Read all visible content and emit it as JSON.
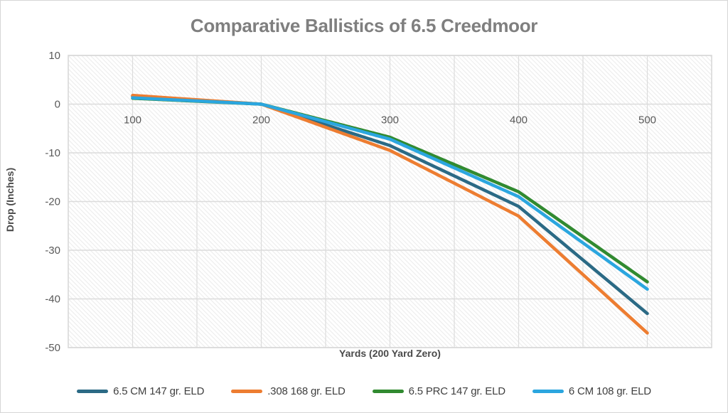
{
  "chart_data": {
    "type": "line",
    "title": "Comparative Ballistics of 6.5 Creedmoor",
    "xlabel": "Yards (200 Yard Zero)",
    "ylabel": "Drop (Inches)",
    "categories": [
      100,
      200,
      300,
      400,
      500
    ],
    "yticks": [
      10,
      0,
      -10,
      -20,
      -30,
      -40,
      -50
    ],
    "ylim": [
      -50,
      10
    ],
    "grid": true,
    "plot_background": "diagonal-hatch",
    "legend_position": "bottom",
    "series": [
      {
        "name": "6.5 CM 147 gr. ELD",
        "color": "#2B6A85",
        "values": [
          1.6,
          0,
          -8.5,
          -21,
          -43
        ]
      },
      {
        "name": ".308 168 gr. ELD",
        "color": "#ED7D31",
        "values": [
          1.8,
          0,
          -9.5,
          -23,
          -47
        ]
      },
      {
        "name": "6.5 PRC 147 gr. ELD",
        "color": "#318A30",
        "values": [
          1.2,
          0,
          -6.8,
          -18,
          -36.5
        ]
      },
      {
        "name": "6 CM 108 gr. ELD",
        "color": "#2BA6DF",
        "values": [
          1.3,
          0,
          -7.2,
          -19,
          -38
        ]
      }
    ]
  }
}
